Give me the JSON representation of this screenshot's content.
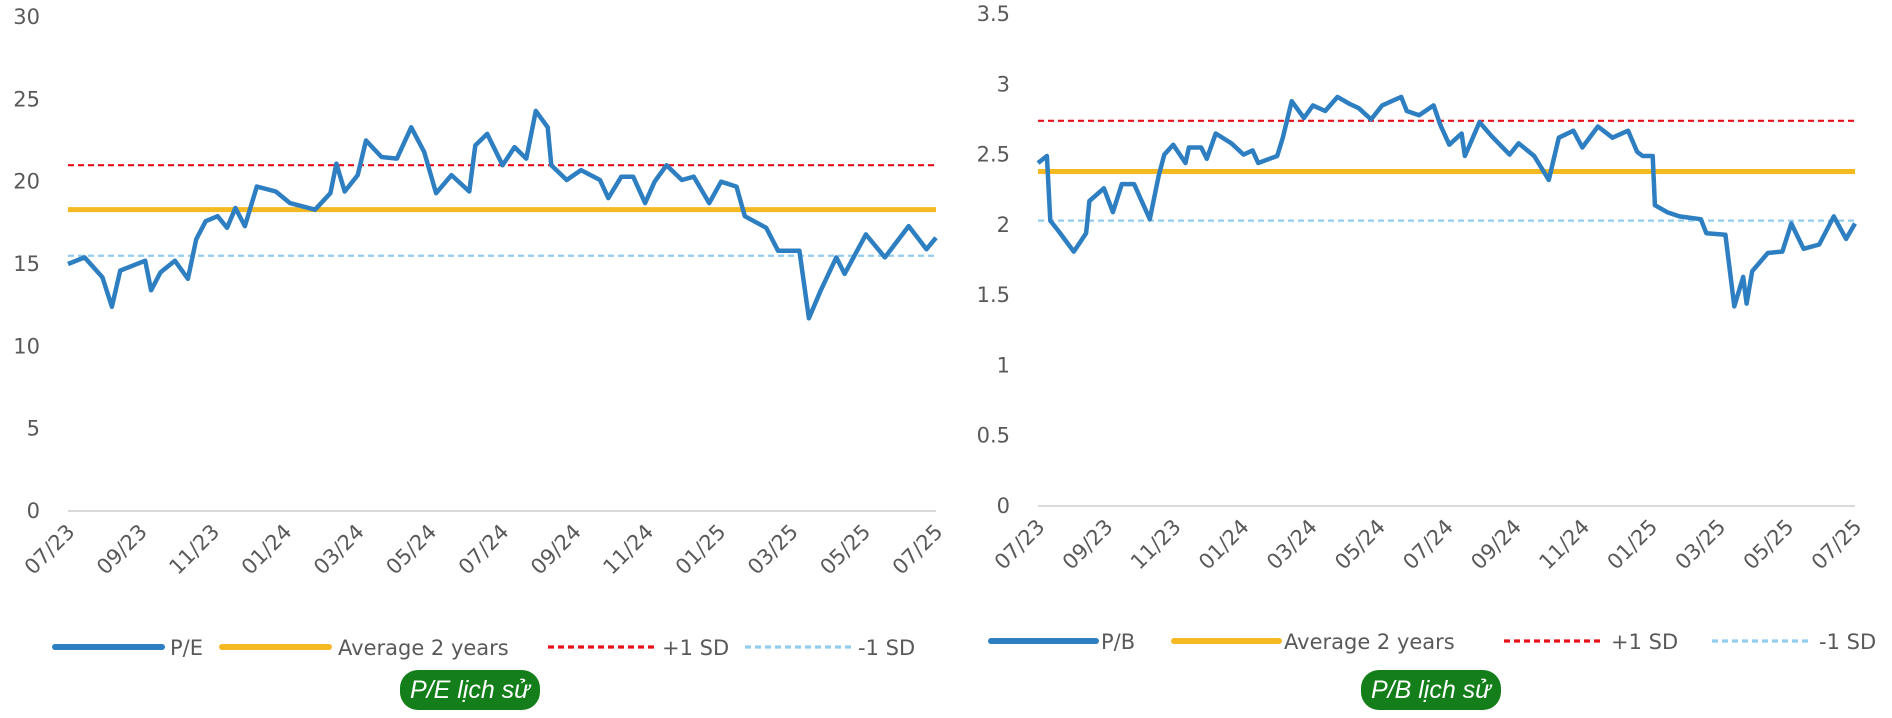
{
  "colors": {
    "series": "#2e7fc2",
    "average": "#f5b921",
    "plus_sd": "#e8111b",
    "minus_sd": "#93cdee",
    "axis": "#d9d9d9",
    "badge": "#137e1a"
  },
  "chart_data": [
    {
      "type": "line",
      "title": "P/E lịch sử",
      "ylim": [
        0,
        30
      ],
      "yticks": [
        "0",
        "5",
        "10",
        "15",
        "20",
        "25",
        "30"
      ],
      "ytick_values": [
        0,
        5,
        10,
        15,
        20,
        25,
        30
      ],
      "xticks": [
        "07/23",
        "09/23",
        "11/23",
        "01/24",
        "03/24",
        "05/24",
        "07/24",
        "09/24",
        "11/24",
        "01/25",
        "03/25",
        "05/25",
        "07/25"
      ],
      "xlim": [
        "2023-07-01",
        "2025-07-01"
      ],
      "grid": false,
      "legend_position": "bottom",
      "legend": [
        "P/E",
        "Average 2 years",
        "+1 SD",
        "-1 SD"
      ],
      "reference_lines": {
        "average": 18.3,
        "plus_sd": 21.0,
        "minus_sd": 15.5
      },
      "series": [
        {
          "name": "P/E",
          "points": [
            [
              "2023-07-01",
              15.0
            ],
            [
              "2023-07-15",
              15.4
            ],
            [
              "2023-07-30",
              14.2
            ],
            [
              "2023-08-07",
              12.4
            ],
            [
              "2023-08-14",
              14.6
            ],
            [
              "2023-09-04",
              15.2
            ],
            [
              "2023-09-09",
              13.4
            ],
            [
              "2023-09-17",
              14.5
            ],
            [
              "2023-09-29",
              15.2
            ],
            [
              "2023-10-10",
              14.1
            ],
            [
              "2023-10-17",
              16.5
            ],
            [
              "2023-10-25",
              17.6
            ],
            [
              "2023-11-04",
              17.9
            ],
            [
              "2023-11-12",
              17.2
            ],
            [
              "2023-11-19",
              18.4
            ],
            [
              "2023-11-27",
              17.3
            ],
            [
              "2023-12-07",
              19.7
            ],
            [
              "2023-12-23",
              19.4
            ],
            [
              "2024-01-04",
              18.7
            ],
            [
              "2024-01-25",
              18.3
            ],
            [
              "2024-02-07",
              19.3
            ],
            [
              "2024-02-12",
              21.1
            ],
            [
              "2024-02-19",
              19.4
            ],
            [
              "2024-03-01",
              20.4
            ],
            [
              "2024-03-08",
              22.5
            ],
            [
              "2024-03-21",
              21.5
            ],
            [
              "2024-04-03",
              21.4
            ],
            [
              "2024-04-15",
              23.3
            ],
            [
              "2024-04-26",
              21.8
            ],
            [
              "2024-05-06",
              19.3
            ],
            [
              "2024-05-19",
              20.4
            ],
            [
              "2024-06-03",
              19.4
            ],
            [
              "2024-06-08",
              22.2
            ],
            [
              "2024-06-18",
              22.9
            ],
            [
              "2024-07-01",
              21.0
            ],
            [
              "2024-07-11",
              22.1
            ],
            [
              "2024-07-21",
              21.4
            ],
            [
              "2024-07-29",
              24.3
            ],
            [
              "2024-08-08",
              23.3
            ],
            [
              "2024-08-11",
              21.0
            ],
            [
              "2024-08-24",
              20.1
            ],
            [
              "2024-09-05",
              20.7
            ],
            [
              "2024-09-21",
              20.1
            ],
            [
              "2024-09-28",
              19.0
            ],
            [
              "2024-10-09",
              20.3
            ],
            [
              "2024-10-19",
              20.3
            ],
            [
              "2024-10-29",
              18.7
            ],
            [
              "2024-11-06",
              20.0
            ],
            [
              "2024-11-16",
              21.0
            ],
            [
              "2024-11-29",
              20.1
            ],
            [
              "2024-12-09",
              20.3
            ],
            [
              "2024-12-22",
              18.7
            ],
            [
              "2025-01-01",
              20.0
            ],
            [
              "2025-01-14",
              19.7
            ],
            [
              "2025-01-21",
              17.9
            ],
            [
              "2025-02-08",
              17.2
            ],
            [
              "2025-02-18",
              15.8
            ],
            [
              "2025-03-08",
              15.8
            ],
            [
              "2025-03-16",
              11.7
            ],
            [
              "2025-03-26",
              13.4
            ],
            [
              "2025-04-08",
              15.4
            ],
            [
              "2025-04-15",
              14.4
            ],
            [
              "2025-05-03",
              16.8
            ],
            [
              "2025-05-19",
              15.4
            ],
            [
              "2025-06-08",
              17.3
            ],
            [
              "2025-06-23",
              15.9
            ],
            [
              "2025-07-01",
              16.6
            ]
          ]
        }
      ]
    },
    {
      "type": "line",
      "title": "P/B lịch sử",
      "ylim": [
        0,
        3.5
      ],
      "yticks": [
        "0",
        "0.5",
        "1",
        "1.5",
        "2",
        "2.5",
        "3",
        "3.5"
      ],
      "ytick_values": [
        0,
        0.5,
        1,
        1.5,
        2,
        2.5,
        3,
        3.5
      ],
      "xticks": [
        "07/23",
        "09/23",
        "11/23",
        "01/24",
        "03/24",
        "05/24",
        "07/24",
        "09/24",
        "11/24",
        "01/25",
        "03/25",
        "05/25",
        "07/25"
      ],
      "xlim": [
        "2023-07-01",
        "2025-07-01"
      ],
      "grid": false,
      "legend_position": "bottom",
      "legend": [
        "P/B",
        "Average 2 years",
        "+1 SD",
        "-1 SD"
      ],
      "reference_lines": {
        "average": 2.38,
        "plus_sd": 2.74,
        "minus_sd": 2.03
      },
      "series": [
        {
          "name": "P/B",
          "points": [
            [
              "2023-07-01",
              2.44
            ],
            [
              "2023-07-09",
              2.49
            ],
            [
              "2023-07-12",
              2.03
            ],
            [
              "2023-07-19",
              1.96
            ],
            [
              "2023-08-02",
              1.81
            ],
            [
              "2023-08-13",
              1.94
            ],
            [
              "2023-08-16",
              2.17
            ],
            [
              "2023-08-29",
              2.26
            ],
            [
              "2023-09-06",
              2.09
            ],
            [
              "2023-09-14",
              2.29
            ],
            [
              "2023-09-25",
              2.29
            ],
            [
              "2023-10-09",
              2.04
            ],
            [
              "2023-10-17",
              2.35
            ],
            [
              "2023-10-22",
              2.5
            ],
            [
              "2023-10-30",
              2.57
            ],
            [
              "2023-11-10",
              2.44
            ],
            [
              "2023-11-13",
              2.55
            ],
            [
              "2023-11-24",
              2.55
            ],
            [
              "2023-11-29",
              2.47
            ],
            [
              "2023-12-07",
              2.65
            ],
            [
              "2023-12-21",
              2.58
            ],
            [
              "2024-01-01",
              2.5
            ],
            [
              "2024-01-09",
              2.53
            ],
            [
              "2024-01-14",
              2.44
            ],
            [
              "2024-01-31",
              2.49
            ],
            [
              "2024-02-05",
              2.62
            ],
            [
              "2024-02-13",
              2.88
            ],
            [
              "2024-02-24",
              2.76
            ],
            [
              "2024-03-03",
              2.85
            ],
            [
              "2024-03-14",
              2.81
            ],
            [
              "2024-03-25",
              2.91
            ],
            [
              "2024-04-05",
              2.86
            ],
            [
              "2024-04-13",
              2.83
            ],
            [
              "2024-04-24",
              2.75
            ],
            [
              "2024-05-04",
              2.85
            ],
            [
              "2024-05-21",
              2.91
            ],
            [
              "2024-05-26",
              2.81
            ],
            [
              "2024-06-06",
              2.78
            ],
            [
              "2024-06-19",
              2.85
            ],
            [
              "2024-06-25",
              2.71
            ],
            [
              "2024-07-03",
              2.57
            ],
            [
              "2024-07-14",
              2.65
            ],
            [
              "2024-07-17",
              2.49
            ],
            [
              "2024-07-30",
              2.73
            ],
            [
              "2024-08-10",
              2.63
            ],
            [
              "2024-08-26",
              2.5
            ],
            [
              "2024-09-03",
              2.58
            ],
            [
              "2024-09-17",
              2.49
            ],
            [
              "2024-09-30",
              2.32
            ],
            [
              "2024-10-09",
              2.62
            ],
            [
              "2024-10-22",
              2.67
            ],
            [
              "2024-10-30",
              2.55
            ],
            [
              "2024-11-13",
              2.7
            ],
            [
              "2024-11-26",
              2.62
            ],
            [
              "2024-12-10",
              2.67
            ],
            [
              "2024-12-18",
              2.52
            ],
            [
              "2024-12-23",
              2.49
            ],
            [
              "2025-01-01",
              2.49
            ],
            [
              "2025-01-03",
              2.14
            ],
            [
              "2025-01-14",
              2.09
            ],
            [
              "2025-01-25",
              2.06
            ],
            [
              "2025-02-13",
              2.04
            ],
            [
              "2025-02-18",
              1.94
            ],
            [
              "2025-03-07",
              1.93
            ],
            [
              "2025-03-15",
              1.42
            ],
            [
              "2025-03-23",
              1.63
            ],
            [
              "2025-03-26",
              1.44
            ],
            [
              "2025-03-31",
              1.67
            ],
            [
              "2025-04-14",
              1.8
            ],
            [
              "2025-04-27",
              1.81
            ],
            [
              "2025-05-05",
              2.01
            ],
            [
              "2025-05-16",
              1.83
            ],
            [
              "2025-05-30",
              1.86
            ],
            [
              "2025-06-12",
              2.06
            ],
            [
              "2025-06-23",
              1.9
            ],
            [
              "2025-07-01",
              2.01
            ]
          ]
        }
      ]
    }
  ]
}
